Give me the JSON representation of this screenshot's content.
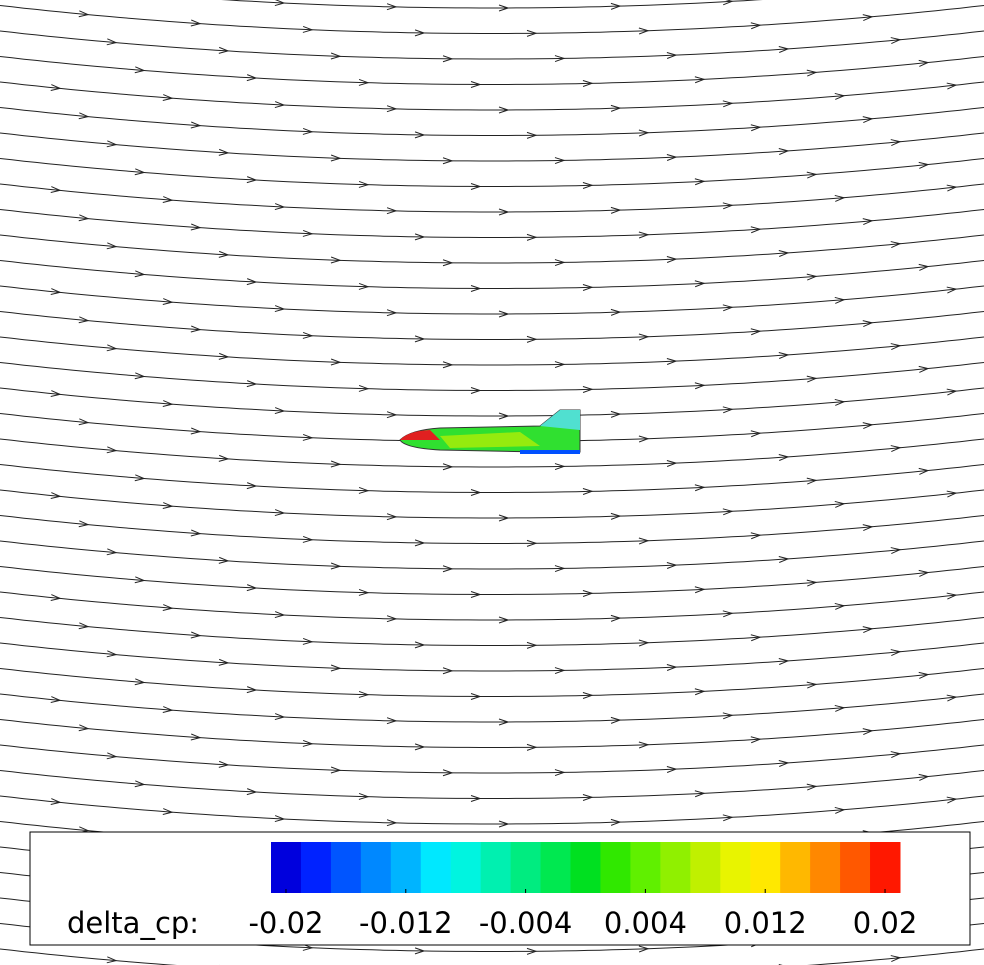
{
  "chart_data": {
    "type": "colorbar",
    "label": "delta_cp:",
    "clim": [
      -0.021,
      0.021
    ],
    "ticks": [
      -0.02,
      -0.012,
      -0.004,
      0.004,
      0.012,
      0.02
    ],
    "colors": [
      "#0000dd",
      "#0022ff",
      "#0055ff",
      "#0088ff",
      "#00b4ff",
      "#00e8ff",
      "#00f4e0",
      "#00f0b0",
      "#00ec80",
      "#00e850",
      "#00e020",
      "#30e800",
      "#60f000",
      "#90f000",
      "#c0f000",
      "#e8f400",
      "#ffe800",
      "#ffb800",
      "#ff8800",
      "#ff5800",
      "#ff1800"
    ]
  }
}
